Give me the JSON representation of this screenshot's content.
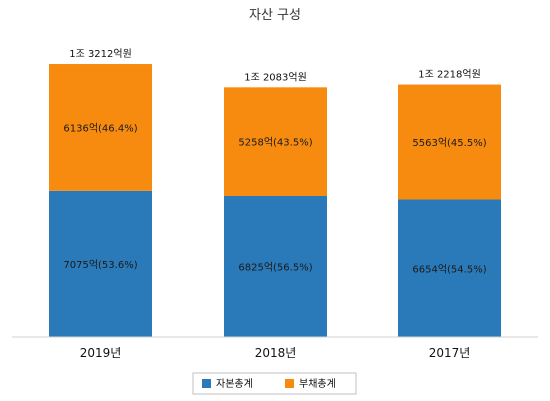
{
  "chart_data": {
    "type": "bar",
    "stacked": true,
    "title": "자산 구성",
    "categories": [
      "2019년",
      "2018년",
      "2017년"
    ],
    "totals": [
      13212,
      12083,
      12218
    ],
    "total_labels": [
      "1조 3212억원",
      "1조 2083억원",
      "1조 2218억원"
    ],
    "series": [
      {
        "name": "자본총계",
        "color": "#2a7ab9",
        "values": [
          7075,
          6825,
          6654
        ],
        "labels": [
          "7075억(53.6%)",
          "6825억(56.5%)",
          "6654억(54.5%)"
        ]
      },
      {
        "name": "부채총계",
        "color": "#f78b0f",
        "values": [
          6136,
          5258,
          5563
        ],
        "labels": [
          "6136억(46.4%)",
          "5258억(43.5%)",
          "5563억(45.5%)"
        ]
      }
    ],
    "ylim": [
      0,
      13212
    ],
    "grid": false,
    "legend_position": "bottom"
  }
}
